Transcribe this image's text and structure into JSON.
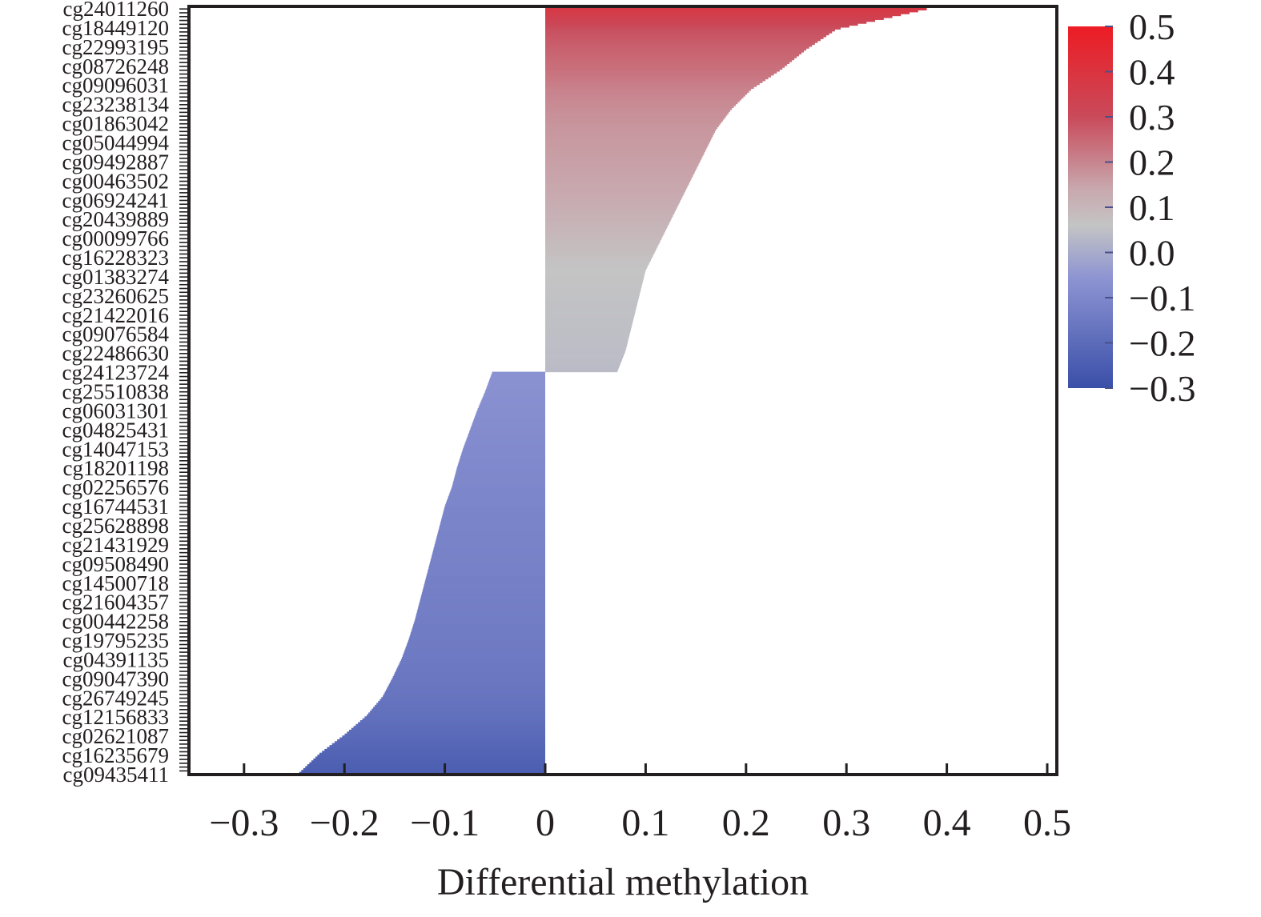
{
  "chart_data": {
    "type": "bar",
    "orientation": "horizontal",
    "title": "",
    "xlabel": "Differential methylation",
    "ylabel": "",
    "xlim": [
      -0.35,
      0.51
    ],
    "x_ticks": [
      -0.3,
      -0.2,
      -0.1,
      0,
      0.1,
      0.2,
      0.3,
      0.4,
      0.5
    ],
    "x_tick_labels": [
      "−0.3",
      "−0.2",
      "−0.1",
      "0",
      "0.1",
      "0.2",
      "0.3",
      "0.4",
      "0.5"
    ],
    "grid": false,
    "bar_count_positive": 190,
    "bar_count_negative": 210,
    "y_tick_labels": [
      "cg24011260",
      "cg18449120",
      "cg22993195",
      "cg08726248",
      "cg09096031",
      "cg23238134",
      "cg01863042",
      "cg05044994",
      "cg09492887",
      "cg00463502",
      "cg06924241",
      "cg20439889",
      "cg00099766",
      "cg16228323",
      "cg01383274",
      "cg23260625",
      "cg21422016",
      "cg09076584",
      "cg22486630",
      "cg24123724",
      "cg25510838",
      "cg06031301",
      "cg04825431",
      "cg14047153",
      "cg18201198",
      "cg02256576",
      "cg16744531",
      "cg25628898",
      "cg21431929",
      "cg09508490",
      "cg14500718",
      "cg21604357",
      "cg00442258",
      "cg19795235",
      "cg04391135",
      "cg09047390",
      "cg26749245",
      "cg12156833",
      "cg02621087",
      "cg16235679",
      "cg09435411"
    ],
    "labeled_bar_values": [
      0.38,
      0.29,
      0.26,
      0.235,
      0.205,
      0.185,
      0.17,
      0.16,
      0.15,
      0.14,
      0.13,
      0.12,
      0.11,
      0.1,
      0.095,
      0.09,
      0.085,
      0.08,
      0.072,
      -0.053,
      -0.06,
      -0.068,
      -0.075,
      -0.082,
      -0.088,
      -0.093,
      -0.1,
      -0.105,
      -0.11,
      -0.115,
      -0.12,
      -0.125,
      -0.13,
      -0.136,
      -0.143,
      -0.152,
      -0.162,
      -0.178,
      -0.2,
      -0.225,
      -0.245
    ],
    "colorbar": {
      "min": -0.3,
      "max": 0.5,
      "ticks": [
        0.5,
        0.4,
        0.3,
        0.2,
        0.1,
        0.0,
        -0.1,
        -0.2,
        -0.3
      ],
      "tick_labels": [
        "0.5",
        "0.4",
        "0.3",
        "0.2",
        "0.1",
        "0.0",
        "−0.1",
        "−0.2",
        "−0.3"
      ],
      "colors": {
        "high": "#ed1c24",
        "mid_high": "#c47a86",
        "mid": "#c4c4c4",
        "mid_low": "#8890d0",
        "low": "#3a4fa8"
      }
    }
  }
}
